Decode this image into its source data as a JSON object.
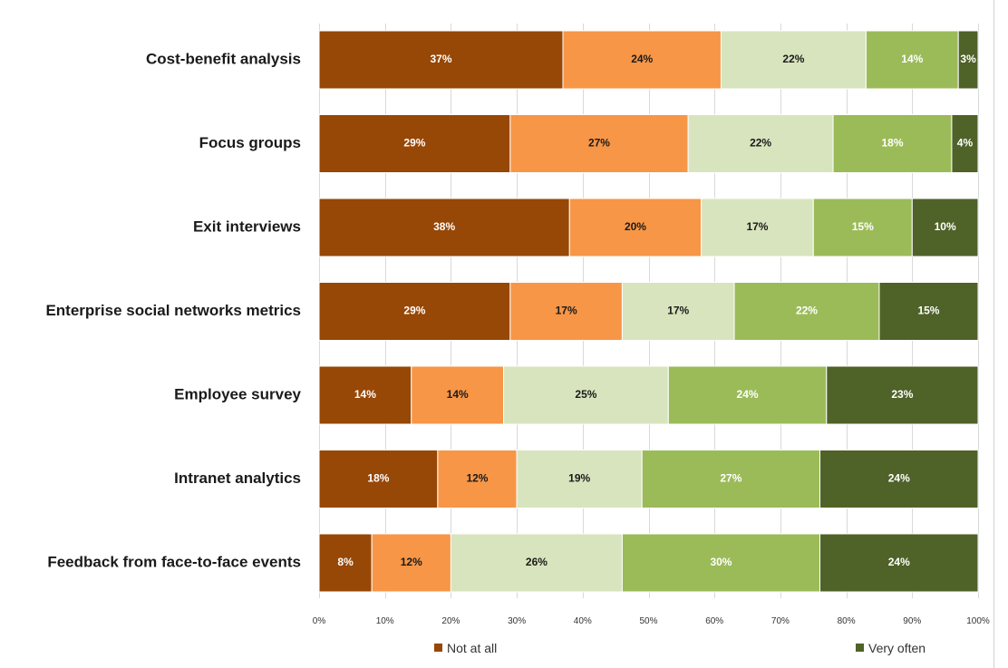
{
  "chart_data": {
    "type": "bar",
    "orientation": "horizontal",
    "stacked": true,
    "percent": true,
    "categories": [
      "Cost-benefit analysis",
      "Focus groups",
      "Exit interviews",
      "Enterprise social networks metrics",
      "Employee survey",
      "Intranet analytics",
      "Feedback from face-to-face events"
    ],
    "series": [
      {
        "name": "Not at all",
        "color": "#974706",
        "label_color": "#ffffff",
        "values": [
          37,
          29,
          38,
          29,
          14,
          18,
          8
        ]
      },
      {
        "color": "#f79646",
        "label_color": "#1a1a1a",
        "values": [
          24,
          27,
          20,
          17,
          14,
          12,
          12
        ]
      },
      {
        "color": "#d7e4bd",
        "label_color": "#1a1a1a",
        "values": [
          22,
          22,
          17,
          17,
          25,
          19,
          26
        ]
      },
      {
        "color": "#9bbb59",
        "label_color": "#ffffff",
        "values": [
          14,
          18,
          15,
          22,
          24,
          27,
          30
        ]
      },
      {
        "name": "Very often",
        "color": "#4f6228",
        "label_color": "#ffffff",
        "values": [
          3,
          4,
          10,
          15,
          23,
          24,
          24
        ]
      }
    ],
    "xlim": [
      0,
      100
    ],
    "x_ticks": [
      "0%",
      "10%",
      "20%",
      "30%",
      "40%",
      "50%",
      "60%",
      "70%",
      "80%",
      "90%",
      "100%"
    ],
    "grid": true,
    "legend": {
      "position": "bottom",
      "entries": [
        "Not at all",
        "Very often"
      ]
    }
  }
}
